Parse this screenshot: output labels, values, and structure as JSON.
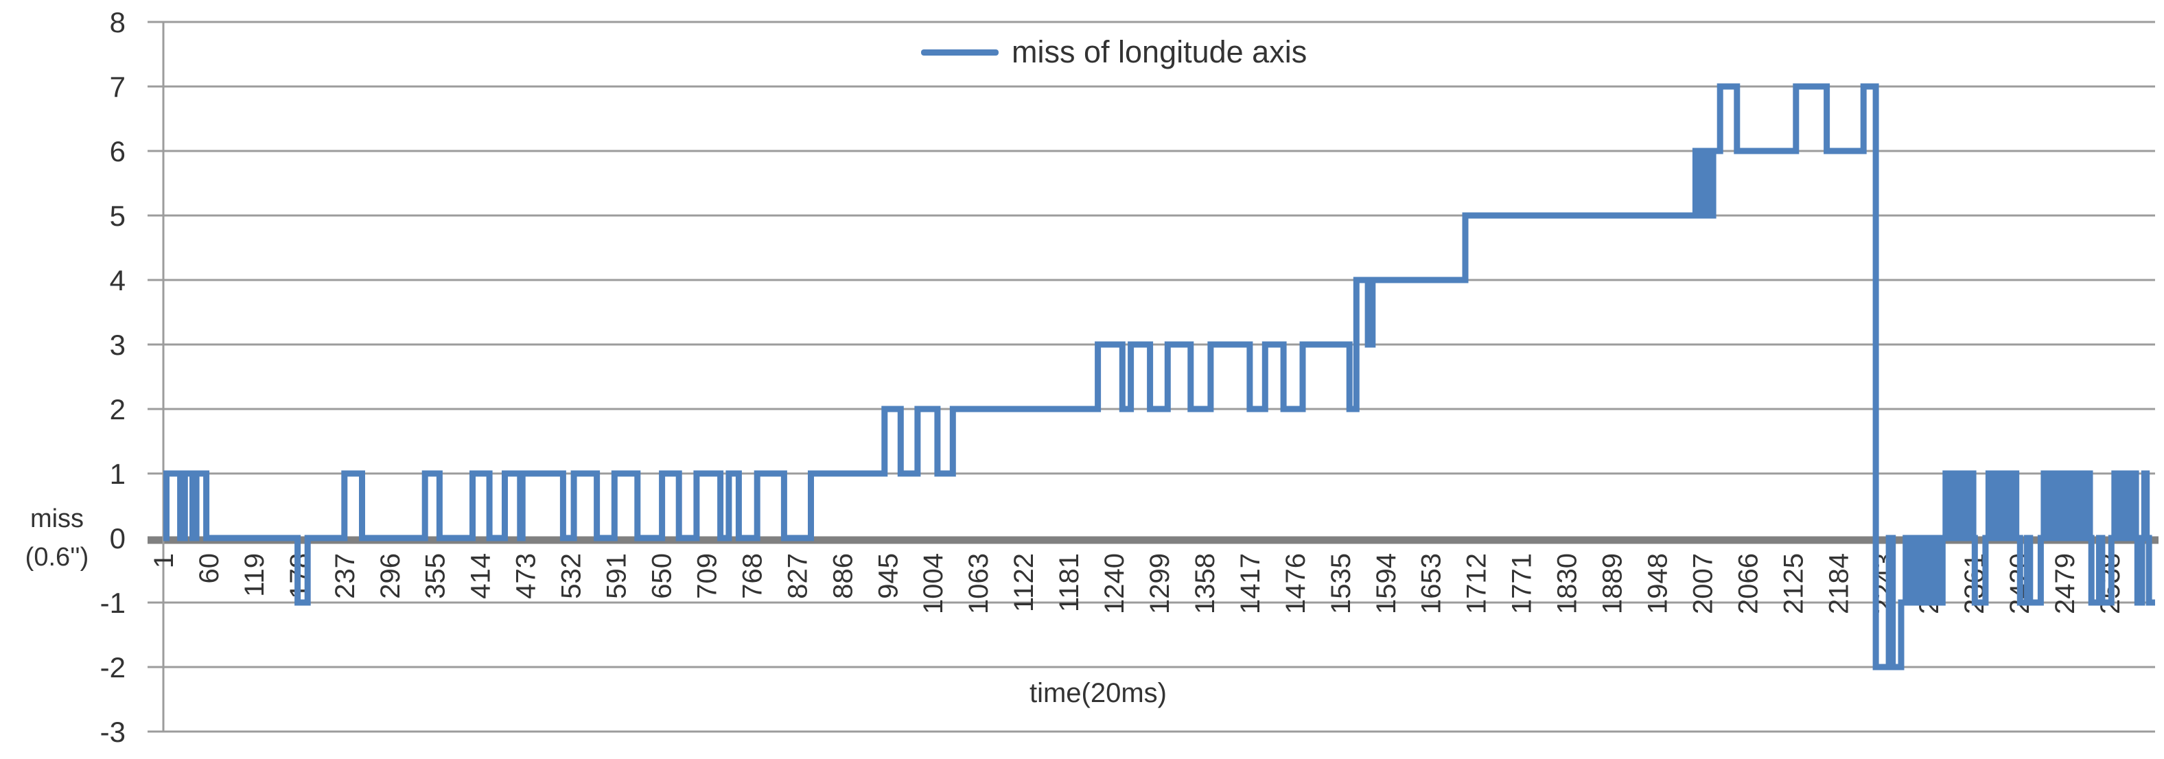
{
  "chart_data": {
    "type": "line",
    "title": "",
    "legend": "miss of longitude axis",
    "xlabel": "time(20ms)",
    "ylabel_line1": "miss",
    "ylabel_line2": "(0.6'')",
    "ylim": [
      -3,
      8
    ],
    "yticks": [
      8,
      7,
      6,
      5,
      4,
      3,
      2,
      1,
      0,
      -1,
      -2,
      -3
    ],
    "xticks": [
      1,
      60,
      119,
      178,
      237,
      296,
      355,
      414,
      473,
      532,
      591,
      650,
      709,
      768,
      827,
      886,
      945,
      1004,
      1063,
      1122,
      1181,
      1240,
      1299,
      1358,
      1417,
      1476,
      1535,
      1594,
      1653,
      1712,
      1771,
      1830,
      1889,
      1948,
      2007,
      2066,
      2125,
      2184,
      2243,
      2302,
      2361,
      2420,
      2479,
      2538
    ],
    "x_start": 1,
    "x_end": 2597,
    "grid": "horizontal-only",
    "legend_position": "top-center",
    "colors": {
      "series": "#4F81BD",
      "gridline": "#9C9C9C",
      "zero_axis": "#808080",
      "text": "#333333"
    },
    "series": [
      {
        "name": "miss of longitude axis",
        "step_breakpoints_t_value": [
          [
            1,
            0
          ],
          [
            5,
            1
          ],
          [
            23,
            0
          ],
          [
            29,
            1
          ],
          [
            39,
            0
          ],
          [
            44,
            1
          ],
          [
            57,
            0
          ],
          [
            176,
            -1
          ],
          [
            189,
            0
          ],
          [
            237,
            1
          ],
          [
            260,
            0
          ],
          [
            342,
            1
          ],
          [
            361,
            0
          ],
          [
            404,
            1
          ],
          [
            426,
            0
          ],
          [
            446,
            1
          ],
          [
            466,
            0
          ],
          [
            469,
            1
          ],
          [
            522,
            0
          ],
          [
            536,
            1
          ],
          [
            566,
            0
          ],
          [
            589,
            1
          ],
          [
            619,
            0
          ],
          [
            651,
            1
          ],
          [
            673,
            0
          ],
          [
            696,
            1
          ],
          [
            727,
            0
          ],
          [
            738,
            1
          ],
          [
            751,
            0
          ],
          [
            775,
            1
          ],
          [
            810,
            0
          ],
          [
            845,
            1
          ],
          [
            941,
            2
          ],
          [
            962,
            1
          ],
          [
            984,
            2
          ],
          [
            1010,
            1
          ],
          [
            1030,
            2
          ],
          [
            1219,
            3
          ],
          [
            1251,
            2
          ],
          [
            1262,
            3
          ],
          [
            1287,
            2
          ],
          [
            1310,
            3
          ],
          [
            1340,
            2
          ],
          [
            1366,
            3
          ],
          [
            1417,
            2
          ],
          [
            1437,
            3
          ],
          [
            1461,
            2
          ],
          [
            1486,
            3
          ],
          [
            1547,
            2
          ],
          [
            1556,
            4
          ],
          [
            1571,
            3
          ],
          [
            1577,
            4
          ],
          [
            1698,
            5
          ],
          [
            1998,
            6
          ],
          [
            2002,
            5
          ],
          [
            2006,
            6
          ],
          [
            2010,
            5
          ],
          [
            2014,
            6
          ],
          [
            2018,
            5
          ],
          [
            2021,
            6
          ],
          [
            2030,
            7
          ],
          [
            2052,
            6
          ],
          [
            2129,
            7
          ],
          [
            2169,
            6
          ],
          [
            2217,
            7
          ],
          [
            2233,
            -2
          ],
          [
            2250,
            0
          ],
          [
            2255,
            -2
          ],
          [
            2266,
            -1
          ],
          [
            2272,
            0
          ],
          [
            2276,
            -1
          ],
          [
            2282,
            0
          ],
          [
            2286,
            -1
          ],
          [
            2292,
            0
          ],
          [
            2296,
            -1
          ],
          [
            2302,
            0
          ],
          [
            2306,
            -1
          ],
          [
            2312,
            0
          ],
          [
            2316,
            -1
          ],
          [
            2320,
            0
          ],
          [
            2324,
            1
          ],
          [
            2328,
            0
          ],
          [
            2332,
            1
          ],
          [
            2336,
            0
          ],
          [
            2340,
            1
          ],
          [
            2344,
            0
          ],
          [
            2348,
            1
          ],
          [
            2352,
            0
          ],
          [
            2356,
            1
          ],
          [
            2360,
            0
          ],
          [
            2362,
            -1
          ],
          [
            2376,
            0
          ],
          [
            2380,
            1
          ],
          [
            2384,
            0
          ],
          [
            2388,
            1
          ],
          [
            2392,
            0
          ],
          [
            2396,
            1
          ],
          [
            2400,
            0
          ],
          [
            2404,
            1
          ],
          [
            2408,
            0
          ],
          [
            2412,
            1
          ],
          [
            2416,
            0
          ],
          [
            2421,
            -1
          ],
          [
            2430,
            0
          ],
          [
            2434,
            -1
          ],
          [
            2448,
            0
          ],
          [
            2452,
            1
          ],
          [
            2456,
            0
          ],
          [
            2460,
            1
          ],
          [
            2464,
            0
          ],
          [
            2468,
            1
          ],
          [
            2472,
            0
          ],
          [
            2476,
            1
          ],
          [
            2480,
            0
          ],
          [
            2484,
            1
          ],
          [
            2488,
            0
          ],
          [
            2492,
            1
          ],
          [
            2496,
            0
          ],
          [
            2500,
            1
          ],
          [
            2504,
            0
          ],
          [
            2508,
            1
          ],
          [
            2512,
            0
          ],
          [
            2514,
            -1
          ],
          [
            2524,
            0
          ],
          [
            2528,
            -1
          ],
          [
            2540,
            0
          ],
          [
            2544,
            1
          ],
          [
            2548,
            0
          ],
          [
            2552,
            1
          ],
          [
            2556,
            0
          ],
          [
            2560,
            1
          ],
          [
            2564,
            0
          ],
          [
            2568,
            1
          ],
          [
            2572,
            0
          ],
          [
            2574,
            -1
          ],
          [
            2580,
            0
          ],
          [
            2583,
            1
          ],
          [
            2586,
            0
          ],
          [
            2589,
            -1
          ],
          [
            2597,
            -1
          ]
        ]
      }
    ]
  }
}
